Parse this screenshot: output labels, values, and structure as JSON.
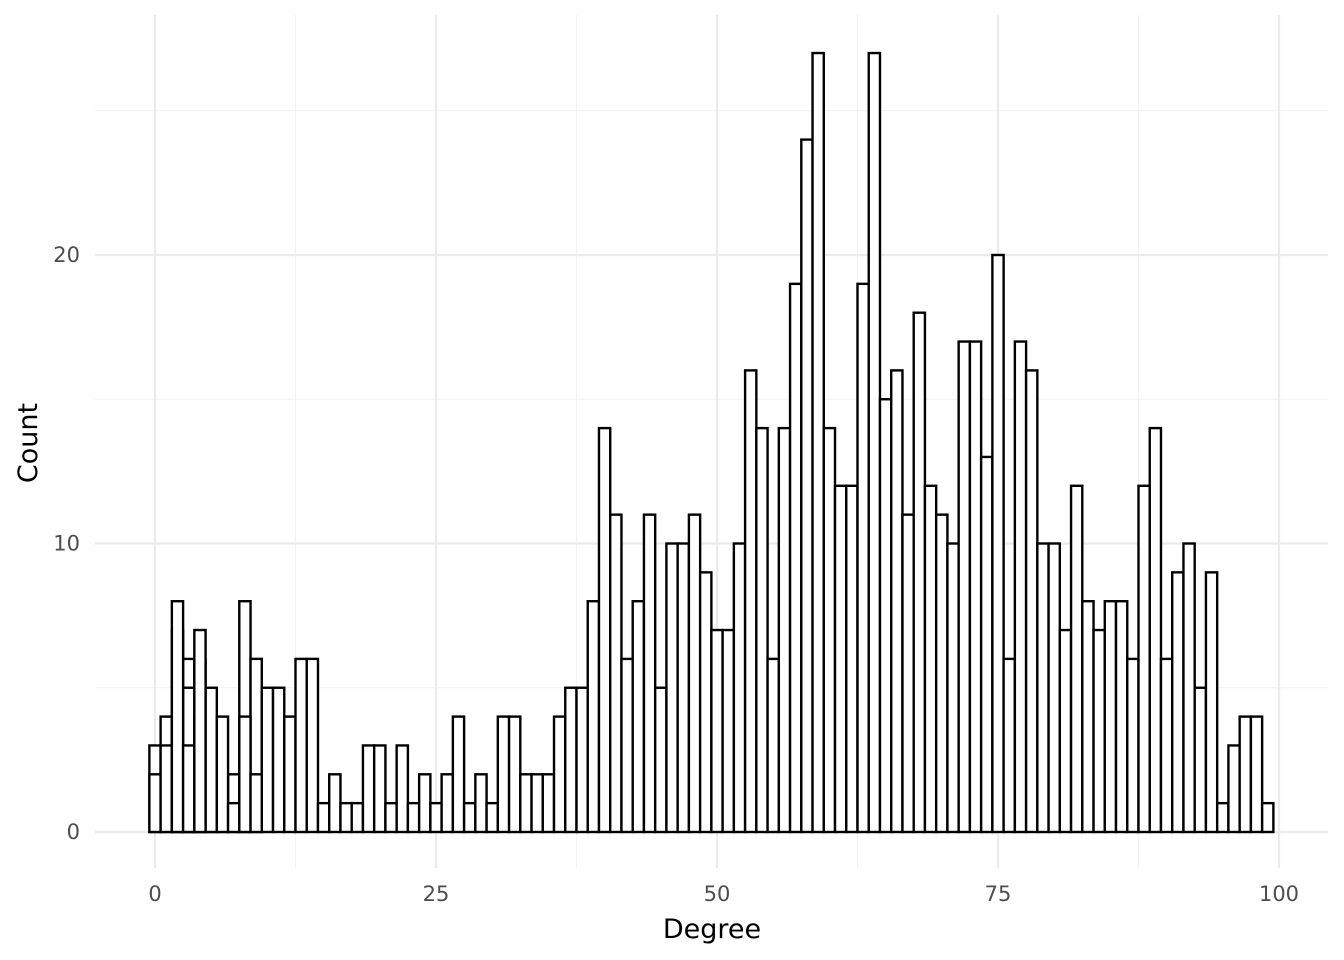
{
  "chart_data": {
    "type": "bar",
    "subtype": "overlapping-histogram",
    "title": "",
    "xlabel": "Degree",
    "ylabel": "Count",
    "xlim": [
      -5,
      104.5
    ],
    "ylim": [
      -1.3,
      28
    ],
    "x_ticks": [
      0,
      25,
      50,
      75,
      100
    ],
    "y_ticks": [
      0,
      10,
      20
    ],
    "grid": true,
    "bin_width": 1,
    "fill": "#ffffff",
    "outline": "#000000",
    "series": [
      {
        "bins_start": 0,
        "values": [
          3,
          4,
          7,
          6,
          6,
          3,
          2,
          2,
          8,
          6,
          5,
          5,
          4,
          6,
          6,
          1,
          2,
          1,
          1,
          3,
          3,
          1,
          3,
          1,
          2,
          1,
          2,
          4,
          1,
          2,
          1,
          4,
          4,
          2,
          2,
          2,
          4,
          5,
          5,
          8,
          14,
          11,
          6,
          8,
          11,
          5,
          10,
          10,
          11,
          9,
          7,
          7,
          10,
          16,
          14,
          6,
          14,
          19,
          24,
          27,
          14,
          12,
          12,
          19,
          27,
          15,
          16,
          11,
          18,
          12,
          11,
          10,
          17,
          17,
          13,
          20,
          6,
          17,
          16,
          10,
          10,
          7,
          12,
          8,
          7,
          8,
          8,
          6,
          12,
          14,
          6,
          9,
          10,
          5,
          9,
          1,
          3,
          4,
          4,
          1
        ]
      },
      {
        "bins_start": 0,
        "values": [
          2,
          3,
          3,
          5,
          4,
          5,
          4,
          1,
          4,
          2
        ]
      },
      {
        "bins_start": 0,
        "values": [
          null,
          null,
          8,
          3,
          7
        ]
      }
    ]
  }
}
